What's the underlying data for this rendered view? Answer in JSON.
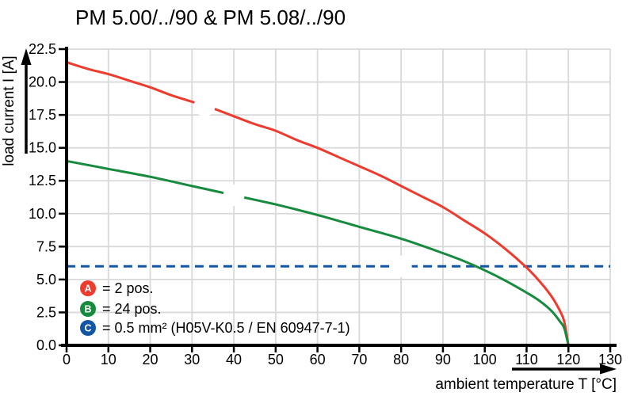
{
  "title": "PM 5.00/../90 & PM 5.08/../90",
  "chart_data": {
    "type": "line",
    "title": "PM 5.00/../90 & PM 5.08/../90",
    "xlabel": "ambient temperature T [°C]",
    "ylabel": "load current I [A]",
    "xlim": [
      0,
      130
    ],
    "ylim": [
      0,
      22.5
    ],
    "x_ticks": [
      0,
      10,
      20,
      30,
      40,
      50,
      60,
      70,
      80,
      90,
      100,
      110,
      120,
      130
    ],
    "y_ticks": [
      "0.0",
      "2.5",
      "5.0",
      "7.5",
      "10.0",
      "12.5",
      "15.0",
      "17.5",
      "20.0",
      "22.5"
    ],
    "grid": true,
    "grid_color": "#d9d9d9",
    "axis_color": "#000000",
    "legend_position": "inside lower-left",
    "series": [
      {
        "name": "A",
        "legend_label": "= 2 pos.",
        "color": "#ee3b2e",
        "line_style": "solid",
        "marker": {
          "letter": "A",
          "x": 33,
          "y": 18.2
        },
        "points": [
          [
            0,
            21.5
          ],
          [
            5,
            21.0
          ],
          [
            10,
            20.6
          ],
          [
            15,
            20.1
          ],
          [
            20,
            19.6
          ],
          [
            25,
            19.0
          ],
          [
            30,
            18.5
          ],
          [
            33,
            18.2
          ],
          [
            35,
            18.0
          ],
          [
            40,
            17.4
          ],
          [
            45,
            16.8
          ],
          [
            50,
            16.3
          ],
          [
            55,
            15.6
          ],
          [
            60,
            15.0
          ],
          [
            65,
            14.3
          ],
          [
            70,
            13.6
          ],
          [
            75,
            12.9
          ],
          [
            80,
            12.1
          ],
          [
            85,
            11.3
          ],
          [
            90,
            10.5
          ],
          [
            95,
            9.5
          ],
          [
            100,
            8.5
          ],
          [
            105,
            7.3
          ],
          [
            110,
            5.9
          ],
          [
            113,
            4.9
          ],
          [
            116,
            3.7
          ],
          [
            118,
            2.6
          ],
          [
            119,
            1.8
          ],
          [
            120,
            0
          ]
        ]
      },
      {
        "name": "B",
        "legend_label": "= 24 pos.",
        "color": "#168a3d",
        "line_style": "solid",
        "marker": {
          "letter": "B",
          "x": 40,
          "y": 11.4
        },
        "points": [
          [
            0,
            14.0
          ],
          [
            10,
            13.4
          ],
          [
            20,
            12.8
          ],
          [
            30,
            12.1
          ],
          [
            40,
            11.4
          ],
          [
            50,
            10.7
          ],
          [
            60,
            9.9
          ],
          [
            70,
            9.0
          ],
          [
            80,
            8.1
          ],
          [
            90,
            7.0
          ],
          [
            95,
            6.4
          ],
          [
            100,
            5.7
          ],
          [
            105,
            4.9
          ],
          [
            110,
            4.0
          ],
          [
            113,
            3.4
          ],
          [
            116,
            2.6
          ],
          [
            118,
            1.8
          ],
          [
            119,
            1.3
          ],
          [
            120,
            0
          ]
        ]
      },
      {
        "name": "C",
        "legend_label": "= 0.5 mm² (H05V-K0.5 / EN 60947-7-1)",
        "color": "#1355a5",
        "line_style": "dashed",
        "marker": {
          "letter": "C",
          "x": 80,
          "y": 6.0
        },
        "points": [
          [
            0,
            6.0
          ],
          [
            130,
            6.0
          ]
        ]
      }
    ]
  }
}
